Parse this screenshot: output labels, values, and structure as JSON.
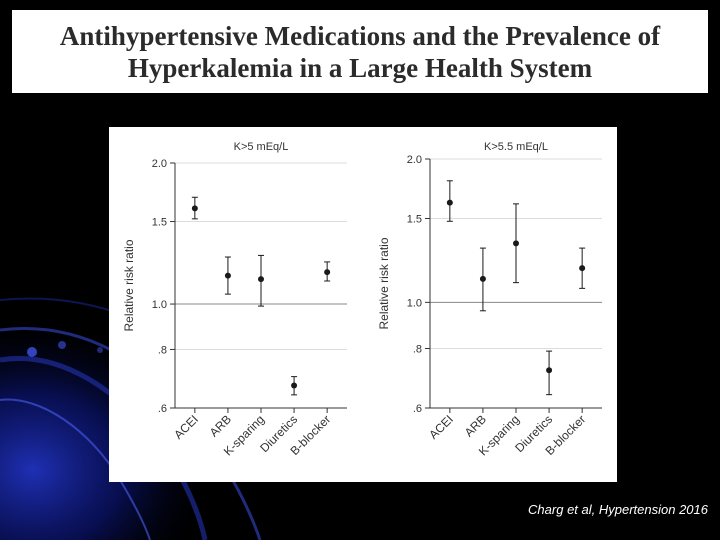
{
  "title": {
    "line1": "Antihypertensive Medications and the Prevalence of",
    "line2": "Hyperkalemia in a Large Health System"
  },
  "citation": "Charg et al, Hypertension 2016",
  "colors": {
    "background": "#000000",
    "panel": "#ffffff",
    "title_text": "#2b2b2b",
    "marks": "#1a1a1a",
    "gridline": "#dddddd",
    "refline": "#888888",
    "citation_text": "#ffffff",
    "swirl_blue": "#1c2fb8"
  },
  "chart_data": [
    {
      "type": "scatter",
      "title": "K>5 mEq/L",
      "ylabel": "Relative risk ratio",
      "xlabel": "",
      "yscale": "log",
      "ylim": [
        0.6,
        2.0
      ],
      "yticks": [
        2.0,
        1.5,
        1.0,
        0.8,
        0.6
      ],
      "ytick_labels": [
        "2.0",
        "1.5",
        "1.0",
        ".8",
        ".6"
      ],
      "reference_line": 1.0,
      "categories": [
        "ACEI",
        "ARB",
        "K-sparing",
        "Diuretics",
        "B-blocker"
      ],
      "values": [
        1.6,
        1.15,
        1.13,
        0.67,
        1.17
      ],
      "ci_low": [
        1.52,
        1.05,
        0.99,
        0.64,
        1.12
      ],
      "ci_high": [
        1.69,
        1.26,
        1.27,
        0.7,
        1.23
      ]
    },
    {
      "type": "scatter",
      "title": "K>5.5 mEq/L",
      "ylabel": "Relative risk ratio",
      "xlabel": "",
      "yscale": "log",
      "ylim": [
        0.6,
        2.0
      ],
      "yticks": [
        2.0,
        1.5,
        1.0,
        0.8,
        0.6
      ],
      "ytick_labels": [
        "2.0",
        "1.5",
        "1.0",
        ".8",
        ".6"
      ],
      "reference_line": 1.0,
      "categories": [
        "ACEI",
        "ARB",
        "K-sparing",
        "Diuretics",
        "B-blocker"
      ],
      "values": [
        1.62,
        1.12,
        1.33,
        0.72,
        1.18
      ],
      "ci_low": [
        1.48,
        0.96,
        1.1,
        0.64,
        1.07
      ],
      "ci_high": [
        1.8,
        1.3,
        1.61,
        0.79,
        1.3
      ]
    }
  ]
}
